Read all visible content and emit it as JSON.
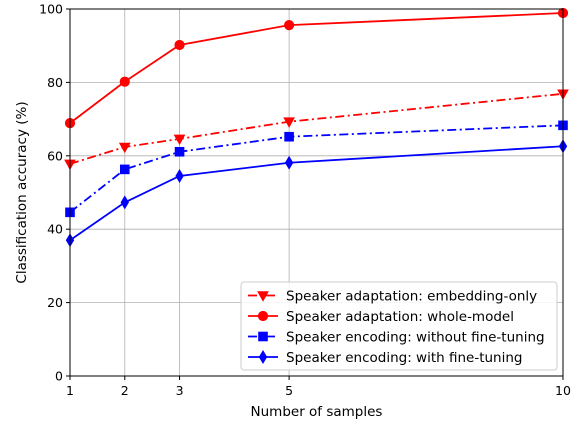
{
  "chart_data": {
    "type": "line",
    "xlabel": "Number of samples",
    "ylabel": "Classification accuracy (%)",
    "xlim": [
      1,
      10
    ],
    "ylim": [
      0,
      100
    ],
    "xticks": [
      1,
      2,
      3,
      5,
      10
    ],
    "yticks": [
      0,
      20,
      40,
      60,
      80,
      100
    ],
    "grid": true,
    "legend_position": "bottom-right",
    "x": [
      1,
      2,
      3,
      5,
      10
    ],
    "series": [
      {
        "name": "Speaker adaptation: embedding-only",
        "values": [
          57.8,
          62.4,
          64.6,
          69.3,
          76.9
        ],
        "color": "#ff0000",
        "linestyle": "dashdot",
        "marker": "triangle-down"
      },
      {
        "name": "Speaker adaptation: whole-model",
        "values": [
          68.9,
          80.2,
          90.2,
          95.6,
          98.9
        ],
        "color": "#ff0000",
        "linestyle": "solid",
        "marker": "circle"
      },
      {
        "name": "Speaker encoding: without fine-tuning",
        "values": [
          44.6,
          56.3,
          61.1,
          65.2,
          68.3
        ],
        "color": "#0000ff",
        "linestyle": "dashdot",
        "marker": "square"
      },
      {
        "name": "Speaker encoding: with fine-tuning",
        "values": [
          37.0,
          47.3,
          54.5,
          58.1,
          62.6
        ],
        "color": "#0000ff",
        "linestyle": "solid",
        "marker": "thin-diamond"
      }
    ]
  }
}
